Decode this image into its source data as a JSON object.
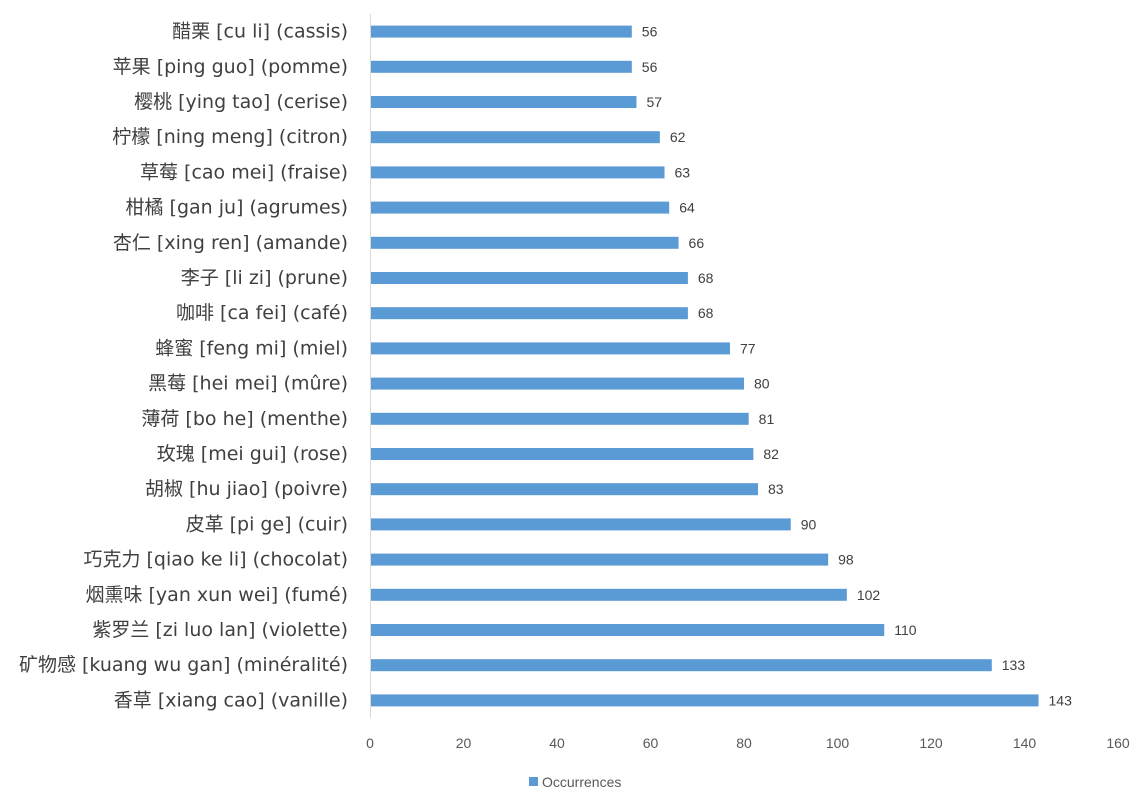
{
  "chart_data": {
    "type": "bar",
    "orientation": "horizontal",
    "title": "",
    "xlabel": "",
    "ylabel": "",
    "xlim": [
      0,
      160
    ],
    "x_ticks": [
      0,
      20,
      40,
      60,
      80,
      100,
      120,
      140,
      160
    ],
    "grid": false,
    "legend_position": "bottom",
    "bar_color": "#5b9bd5",
    "categories": [
      "醋栗 [cu li] (cassis)",
      "苹果 [ping guo] (pomme)",
      "樱桃 [ying tao] (cerise)",
      "柠檬 [ning meng] (citron)",
      "草莓 [cao mei] (fraise)",
      "柑橘 [gan ju] (agrumes)",
      "杏仁 [xing ren] (amande)",
      "李子 [li zi] (prune)",
      "咖啡 [ca fei] (café)",
      "蜂蜜 [feng mi] (miel)",
      "黑莓 [hei mei] (mûre)",
      "薄荷 [bo he] (menthe)",
      "玫瑰 [mei gui] (rose)",
      "胡椒 [hu jiao] (poivre)",
      "皮革 [pi ge] (cuir)",
      "巧克力 [qiao ke li] (chocolat)",
      "烟熏味 [yan xun wei] (fumé)",
      "紫罗兰 [zi luo lan] (violette)",
      "矿物感 [kuang wu gan] (minéralité)",
      "香草 [xiang cao] (vanille)"
    ],
    "series": [
      {
        "name": "Occurrences",
        "values": [
          56,
          56,
          57,
          62,
          63,
          64,
          66,
          68,
          68,
          77,
          80,
          81,
          82,
          83,
          90,
          98,
          102,
          110,
          133,
          143
        ]
      }
    ]
  }
}
